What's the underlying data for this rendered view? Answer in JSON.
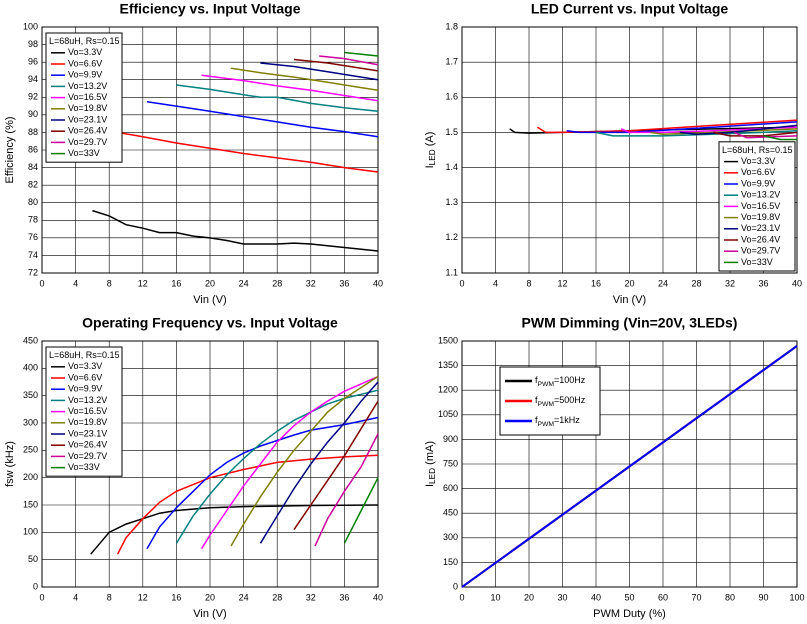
{
  "chart_data": [
    {
      "type": "line",
      "title": "Efficiency vs. Input Voltage",
      "x_label": "Vin (V)",
      "y_label": "Efficiency (%)",
      "xlim": [
        0,
        40
      ],
      "ylim": [
        72,
        100
      ],
      "xticks": [
        0,
        4,
        8,
        12,
        16,
        20,
        24,
        28,
        32,
        36,
        40
      ],
      "yticks": [
        72,
        74,
        76,
        78,
        80,
        82,
        84,
        86,
        88,
        90,
        92,
        94,
        96,
        98,
        100
      ],
      "grid": true,
      "legend": "upper left",
      "legend_title": "L=68uH, Rs=0.15",
      "series": [
        {
          "name": "Vo=3.3V",
          "color": "#000000",
          "x": [
            6,
            8,
            10,
            12,
            14,
            16,
            18,
            20,
            22,
            24,
            26,
            28,
            30,
            32,
            34,
            36,
            38,
            40
          ],
          "values": [
            79.1,
            78.5,
            77.5,
            77.1,
            76.6,
            76.6,
            76.2,
            76.0,
            75.7,
            75.3,
            75.3,
            75.3,
            75.4,
            75.3,
            75.1,
            74.9,
            74.7,
            74.5
          ]
        },
        {
          "name": "Vo=6.6V",
          "color": "#ff0000",
          "x": [
            9,
            12,
            16,
            20,
            24,
            28,
            32,
            36,
            40
          ],
          "values": [
            88.0,
            87.5,
            86.8,
            86.2,
            85.6,
            85.1,
            84.6,
            84.0,
            83.5
          ]
        },
        {
          "name": "Vo=9.9V",
          "color": "#0000ff",
          "x": [
            12.5,
            16,
            20,
            24,
            28,
            32,
            36,
            40
          ],
          "values": [
            91.5,
            91.0,
            90.4,
            89.8,
            89.2,
            88.6,
            88.1,
            87.5
          ]
        },
        {
          "name": "Vo=13.2V",
          "color": "#008080",
          "x": [
            16,
            20,
            24,
            26,
            28,
            32,
            36,
            40
          ],
          "values": [
            93.4,
            92.9,
            92.3,
            92.0,
            92.0,
            91.3,
            90.8,
            90.4
          ]
        },
        {
          "name": "Vo=16.5V",
          "color": "#ff00ff",
          "x": [
            19,
            24,
            28,
            32,
            36,
            40
          ],
          "values": [
            94.5,
            93.9,
            93.3,
            92.8,
            92.2,
            91.6
          ]
        },
        {
          "name": "Vo=19.8V",
          "color": "#808000",
          "x": [
            22.5,
            26,
            30,
            34,
            38,
            40
          ],
          "values": [
            95.3,
            94.8,
            94.3,
            93.7,
            93.1,
            92.8
          ]
        },
        {
          "name": "Vo=23.1V",
          "color": "#000080",
          "x": [
            26,
            30,
            34,
            38,
            40
          ],
          "values": [
            95.9,
            95.5,
            94.9,
            94.3,
            94.0
          ]
        },
        {
          "name": "Vo=26.4V",
          "color": "#800000",
          "x": [
            30,
            34,
            38,
            40
          ],
          "values": [
            96.3,
            95.9,
            95.3,
            95.0
          ]
        },
        {
          "name": "Vo=29.7V",
          "color": "#cc0099",
          "x": [
            33,
            36,
            40
          ],
          "values": [
            96.7,
            96.4,
            95.7
          ]
        },
        {
          "name": "Vo=33V",
          "color": "#008000",
          "x": [
            36,
            40
          ],
          "values": [
            97.1,
            96.7
          ]
        }
      ]
    },
    {
      "type": "line",
      "title": "LED Current vs. Input Voltage",
      "x_label": "Vin (V)",
      "y_label": [
        "I",
        "LED",
        " (A)"
      ],
      "xlim": [
        0,
        40
      ],
      "ylim": [
        1.1,
        1.8
      ],
      "xticks": [
        0,
        4,
        8,
        12,
        16,
        20,
        24,
        28,
        32,
        36,
        40
      ],
      "yticks": [
        1.1,
        1.2,
        1.3,
        1.4,
        1.5,
        1.6,
        1.7,
        1.8
      ],
      "grid": true,
      "legend": "lower right",
      "legend_title": "L=68uH, Rs=0.15",
      "series": [
        {
          "name": "Vo=3.3V",
          "color": "#000000",
          "x": [
            5.7,
            6.3,
            8,
            12,
            20,
            30,
            40
          ],
          "values": [
            1.51,
            1.5,
            1.498,
            1.5,
            1.505,
            1.51,
            1.515
          ]
        },
        {
          "name": "Vo=6.6V",
          "color": "#ff0000",
          "x": [
            9,
            10,
            12,
            20,
            30,
            40
          ],
          "values": [
            1.515,
            1.5,
            1.5,
            1.505,
            1.52,
            1.535
          ]
        },
        {
          "name": "Vo=9.9V",
          "color": "#0000ff",
          "x": [
            12.5,
            14,
            20,
            30,
            40
          ],
          "values": [
            1.505,
            1.5,
            1.5,
            1.515,
            1.53
          ]
        },
        {
          "name": "Vo=13.2V",
          "color": "#008080",
          "x": [
            16,
            18,
            24,
            30,
            36,
            40
          ],
          "values": [
            1.5,
            1.49,
            1.49,
            1.495,
            1.5,
            1.505
          ]
        },
        {
          "name": "Vo=16.5V",
          "color": "#ff00ff",
          "x": [
            19,
            20,
            24,
            30,
            40
          ],
          "values": [
            1.51,
            1.5,
            1.5,
            1.505,
            1.515
          ]
        },
        {
          "name": "Vo=19.8V",
          "color": "#808000",
          "x": [
            22.5,
            24,
            30,
            40
          ],
          "values": [
            1.5,
            1.495,
            1.5,
            1.51
          ]
        },
        {
          "name": "Vo=23.1V",
          "color": "#000080",
          "x": [
            26,
            28,
            32,
            40
          ],
          "values": [
            1.5,
            1.495,
            1.5,
            1.52
          ]
        },
        {
          "name": "Vo=26.4V",
          "color": "#800000",
          "x": [
            30,
            32,
            36,
            40
          ],
          "values": [
            1.5,
            1.49,
            1.49,
            1.5
          ]
        },
        {
          "name": "Vo=29.7V",
          "color": "#cc0099",
          "x": [
            32.5,
            34,
            40
          ],
          "values": [
            1.5,
            1.485,
            1.49
          ]
        },
        {
          "name": "Vo=33V",
          "color": "#008000",
          "x": [
            36,
            38,
            40
          ],
          "values": [
            1.49,
            1.48,
            1.48
          ]
        }
      ]
    },
    {
      "type": "line",
      "title": "Operating Frequency vs. Input Voltage",
      "x_label": "Vin (V)",
      "y_label": "fsw (kHz)",
      "xlim": [
        0,
        40
      ],
      "ylim": [
        0,
        450
      ],
      "xticks": [
        0,
        4,
        8,
        12,
        16,
        20,
        24,
        28,
        32,
        36,
        40
      ],
      "yticks": [
        0,
        50,
        100,
        150,
        200,
        250,
        300,
        350,
        400,
        450
      ],
      "grid": true,
      "legend": "upper left",
      "legend_title": "L=68uH, Rs=0.15",
      "series": [
        {
          "name": "Vo=3.3V",
          "color": "#000000",
          "x": [
            5.8,
            8,
            10,
            12,
            14,
            16,
            20,
            24,
            28,
            32,
            40
          ],
          "values": [
            60,
            100,
            115,
            125,
            135,
            140,
            145,
            147,
            148,
            149,
            150
          ]
        },
        {
          "name": "Vo=6.6V",
          "color": "#ff0000",
          "x": [
            9,
            10,
            12,
            14,
            16,
            20,
            24,
            28,
            32,
            36,
            40
          ],
          "values": [
            60,
            90,
            125,
            155,
            175,
            200,
            215,
            228,
            234,
            238,
            241
          ]
        },
        {
          "name": "Vo=9.9V",
          "color": "#0000ff",
          "x": [
            12.5,
            14,
            16,
            18,
            20,
            22,
            24,
            26,
            28,
            30,
            32,
            36,
            40
          ],
          "values": [
            70,
            110,
            145,
            175,
            205,
            228,
            245,
            258,
            268,
            278,
            287,
            297,
            310
          ]
        },
        {
          "name": "Vo=13.2V",
          "color": "#008080",
          "x": [
            16,
            18,
            20,
            22,
            24,
            26,
            28,
            30,
            32,
            34,
            36,
            40
          ],
          "values": [
            80,
            130,
            170,
            205,
            235,
            262,
            285,
            305,
            320,
            335,
            345,
            360
          ]
        },
        {
          "name": "Vo=16.5V",
          "color": "#ff00ff",
          "x": [
            19,
            20,
            22,
            24,
            26,
            28,
            30,
            32,
            34,
            36,
            40
          ],
          "values": [
            70,
            95,
            140,
            185,
            225,
            265,
            295,
            320,
            340,
            358,
            385
          ]
        },
        {
          "name": "Vo=19.8V",
          "color": "#808000",
          "x": [
            22.5,
            24,
            26,
            28,
            30,
            32,
            34,
            36,
            38,
            40
          ],
          "values": [
            75,
            115,
            165,
            210,
            250,
            285,
            320,
            345,
            365,
            385
          ]
        },
        {
          "name": "Vo=23.1V",
          "color": "#000080",
          "x": [
            26,
            28,
            30,
            32,
            34,
            36,
            38,
            40
          ],
          "values": [
            80,
            130,
            180,
            225,
            265,
            300,
            340,
            375
          ]
        },
        {
          "name": "Vo=26.4V",
          "color": "#800000",
          "x": [
            30,
            32,
            34,
            36,
            38,
            40
          ],
          "values": [
            105,
            150,
            195,
            240,
            290,
            340
          ]
        },
        {
          "name": "Vo=29.7V",
          "color": "#cc0099",
          "x": [
            32.5,
            34,
            36,
            38,
            40
          ],
          "values": [
            75,
            125,
            175,
            220,
            280
          ]
        },
        {
          "name": "Vo=33V",
          "color": "#008000",
          "x": [
            36,
            38,
            40
          ],
          "values": [
            80,
            140,
            200
          ]
        }
      ]
    },
    {
      "type": "line",
      "title": "PWM Dimming (Vin=20V, 3LEDs)",
      "x_label": "PWM Duty (%)",
      "y_label": [
        "I",
        "LED",
        " (mA)"
      ],
      "xlim": [
        0,
        100
      ],
      "ylim": [
        0,
        1500
      ],
      "xticks": [
        0,
        10,
        20,
        30,
        40,
        50,
        60,
        70,
        80,
        90,
        100
      ],
      "yticks": [
        0,
        150,
        300,
        450,
        600,
        750,
        900,
        1050,
        1200,
        1350,
        1500
      ],
      "grid": true,
      "legend": "upper left",
      "series": [
        {
          "name": [
            "f",
            "PWM",
            "=100Hz"
          ],
          "color": "#000000",
          "x": [
            0,
            100
          ],
          "values": [
            0,
            1470
          ]
        },
        {
          "name": [
            "f",
            "PWM",
            "=500Hz"
          ],
          "color": "#ff0000",
          "x": [
            0,
            100
          ],
          "values": [
            0,
            1470
          ]
        },
        {
          "name": [
            "f",
            "PWM",
            "=1kHz"
          ],
          "color": "#0000ff",
          "x": [
            0,
            100
          ],
          "values": [
            0,
            1470
          ]
        }
      ]
    }
  ]
}
